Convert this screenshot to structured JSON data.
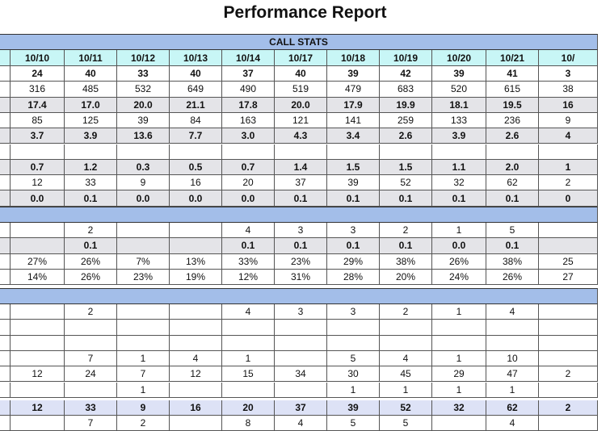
{
  "title": "Performance Report",
  "sections": [
    {
      "title": "CALL STATS",
      "columns": [
        "10/10",
        "10/11",
        "10/12",
        "10/13",
        "10/14",
        "10/17",
        "10/18",
        "10/19",
        "10/20",
        "10/21",
        "10/"
      ],
      "rows": [
        [
          "24",
          "40",
          "33",
          "40",
          "37",
          "40",
          "39",
          "42",
          "39",
          "41",
          "3"
        ],
        [
          "316",
          "485",
          "532",
          "649",
          "490",
          "519",
          "479",
          "683",
          "520",
          "615",
          "38"
        ],
        [
          "17.4",
          "17.0",
          "20.0",
          "21.1",
          "17.8",
          "20.0",
          "17.9",
          "19.9",
          "18.1",
          "19.5",
          "16"
        ],
        [
          "85",
          "125",
          "39",
          "84",
          "163",
          "121",
          "141",
          "259",
          "133",
          "236",
          "9"
        ],
        [
          "3.7",
          "3.9",
          "13.6",
          "7.7",
          "3.0",
          "4.3",
          "3.4",
          "2.6",
          "3.9",
          "2.6",
          "4"
        ],
        [
          null,
          null,
          null,
          null,
          null,
          null,
          null,
          null,
          null,
          null,
          null
        ],
        [
          "0.7",
          "1.2",
          "0.3",
          "0.5",
          "0.7",
          "1.4",
          "1.5",
          "1.5",
          "1.1",
          "2.0",
          "1"
        ],
        [
          "12",
          "33",
          "9",
          "16",
          "20",
          "37",
          "39",
          "52",
          "32",
          "62",
          "2"
        ],
        [
          "0.0",
          "0.1",
          "0.0",
          "0.0",
          "0.0",
          "0.1",
          "0.1",
          "0.1",
          "0.1",
          "0.1",
          "0"
        ]
      ]
    },
    {
      "rows": [
        [
          null,
          "2",
          null,
          null,
          "4",
          "3",
          "3",
          "2",
          "1",
          "5",
          null
        ],
        [
          null,
          "0.1",
          null,
          null,
          "0.1",
          "0.1",
          "0.1",
          "0.1",
          "0.0",
          "0.1",
          null
        ],
        [
          "27%",
          "26%",
          "7%",
          "13%",
          "33%",
          "23%",
          "29%",
          "38%",
          "26%",
          "38%",
          "25"
        ],
        [
          "14%",
          "26%",
          "23%",
          "19%",
          "12%",
          "31%",
          "28%",
          "20%",
          "24%",
          "26%",
          "27"
        ]
      ]
    },
    {
      "rows": [
        [
          null,
          "2",
          null,
          null,
          "4",
          "3",
          "3",
          "2",
          "1",
          "4",
          null
        ],
        [
          null,
          null,
          null,
          null,
          null,
          null,
          null,
          null,
          null,
          null,
          null
        ],
        [
          null,
          null,
          null,
          null,
          null,
          null,
          null,
          null,
          null,
          null,
          null
        ],
        [
          null,
          "7",
          "1",
          "4",
          "1",
          null,
          "5",
          "4",
          "1",
          "10",
          null
        ],
        [
          "12",
          "24",
          "7",
          "12",
          "15",
          "34",
          "30",
          "45",
          "29",
          "47",
          "2"
        ],
        [
          null,
          null,
          "1",
          null,
          null,
          null,
          "1",
          "1",
          "1",
          "1",
          null
        ],
        [
          "12",
          "33",
          "9",
          "16",
          "20",
          "37",
          "39",
          "52",
          "32",
          "62",
          "2"
        ],
        [
          null,
          "7",
          "2",
          null,
          "8",
          "4",
          "5",
          "5",
          null,
          "4",
          null
        ]
      ]
    }
  ]
}
